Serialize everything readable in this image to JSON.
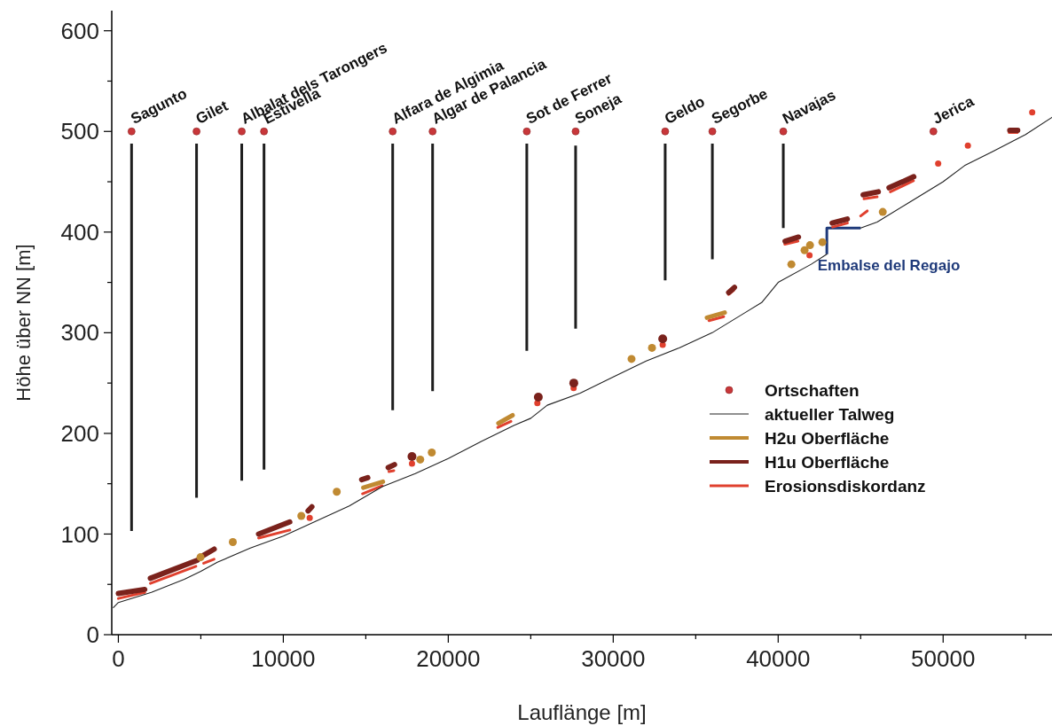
{
  "chart_data": {
    "type": "line",
    "xlabel": "Lauflänge [m]",
    "ylabel": "Höhe über NN [m]",
    "xlim": [
      -400,
      56600
    ],
    "ylim": [
      0,
      620
    ],
    "xticks": [
      0,
      {
        "value": 5000,
        "label": null
      },
      10000,
      {
        "value": 15000,
        "label": null
      },
      20000,
      {
        "value": 25000,
        "label": null
      },
      30000,
      {
        "value": 35000,
        "label": null
      },
      40000,
      {
        "value": 45000,
        "label": null
      },
      50000,
      {
        "value": 55000,
        "label": null
      }
    ],
    "yticks": [
      0,
      {
        "value": 50,
        "label": null
      },
      100,
      {
        "value": 150,
        "label": null
      },
      200,
      {
        "value": 250,
        "label": null
      },
      300,
      {
        "value": 350,
        "label": null
      },
      400,
      {
        "value": 450,
        "label": null
      },
      500,
      {
        "value": 550,
        "label": null
      },
      600
    ],
    "legend": "bottom right",
    "grid": false,
    "series": [
      {
        "name": "Ortschaften",
        "type": "scatter",
        "marker": "circle",
        "color": "#c8373a",
        "x": [
          800,
          4740,
          7480,
          8830,
          16630,
          19050,
          24760,
          27720,
          33150,
          36010,
          40310,
          49410
        ],
        "values": [
          500,
          500,
          500,
          500,
          500,
          500,
          500,
          500,
          500,
          500,
          500,
          500
        ]
      },
      {
        "name": "aktueller Talweg",
        "color": "#222222",
        "x": [
          -300,
          0,
          2000,
          4000,
          5000,
          6000,
          8000,
          10000,
          12000,
          14000,
          16000,
          18000,
          20000,
          22000,
          24000,
          25000,
          26000,
          28000,
          30000,
          32000,
          34000,
          36000,
          38000,
          39000,
          40000,
          42000,
          42950,
          null,
          45000,
          46000,
          48000,
          50000,
          51300,
          53000,
          55000,
          56600
        ],
        "values": [
          27,
          32,
          42,
          55,
          63,
          72,
          86,
          98,
          113,
          128,
          147,
          160,
          175,
          192,
          208,
          215,
          228,
          240,
          256,
          272,
          285,
          300,
          320,
          330,
          350,
          368,
          378,
          null,
          404,
          410,
          430,
          450,
          466,
          480,
          497,
          514
        ]
      },
      {
        "name": "H2u Oberfläche",
        "color": "#c08a32",
        "x": [
          4980,
          null,
          6940,
          null,
          11090,
          null,
          13240,
          null,
          14850,
          16040,
          null,
          18300,
          null,
          19000,
          null,
          23040,
          23900,
          null,
          31110,
          null,
          32350,
          null,
          35680,
          36760,
          null,
          40800,
          null,
          41600,
          null,
          41930,
          null,
          42680,
          null,
          46340
        ],
        "values": [
          77,
          null,
          92,
          null,
          118,
          null,
          142,
          null,
          146,
          152,
          null,
          174,
          null,
          181,
          null,
          210,
          218,
          null,
          274,
          null,
          285,
          null,
          315,
          320,
          null,
          368,
          null,
          382,
          null,
          387,
          null,
          390,
          null,
          420
        ]
      },
      {
        "name": "H1u Oberfläche",
        "color": "#7a221c",
        "x": [
          0,
          1600,
          null,
          1940,
          4790,
          null,
          5170,
          5810,
          null,
          8500,
          10390,
          null,
          11500,
          11730,
          null,
          14750,
          15120,
          null,
          16360,
          16740,
          null,
          17800,
          null,
          25460,
          null,
          27610,
          null,
          33000,
          null,
          37000,
          37350,
          null,
          40420,
          41230,
          null,
          43270,
          44190,
          null,
          45150,
          46070,
          null,
          46720,
          48220,
          null,
          54040,
          54520
        ],
        "values": [
          41,
          45,
          null,
          56,
          74,
          null,
          79,
          85,
          null,
          100,
          112,
          null,
          123,
          127,
          null,
          154,
          156,
          null,
          166,
          169,
          null,
          177,
          null,
          236,
          null,
          250,
          null,
          294,
          null,
          340,
          345,
          null,
          391,
          395,
          null,
          409,
          413,
          null,
          437,
          440,
          null,
          444,
          455,
          null,
          501,
          501
        ]
      },
      {
        "name": "Erosionsdiskordanz",
        "color": "#e0402e",
        "x": [
          0,
          1600,
          null,
          1940,
          4700,
          null,
          5170,
          5800,
          null,
          8500,
          10400,
          null,
          11600,
          null,
          14800,
          16000,
          null,
          16400,
          16700,
          null,
          17800,
          null,
          23000,
          23800,
          null,
          25400,
          null,
          27600,
          null,
          33000,
          null,
          35800,
          36700,
          null,
          37000,
          37300,
          null,
          40400,
          41200,
          null,
          41900,
          null,
          43300,
          44200,
          null,
          45000,
          45400,
          null,
          45200,
          46000,
          null,
          46800,
          48200,
          null,
          49700,
          null,
          51500,
          null,
          54000,
          54500,
          null,
          55400
        ],
        "values": [
          36,
          42,
          null,
          51,
          68,
          null,
          71,
          75,
          null,
          96,
          104,
          null,
          116,
          null,
          140,
          148,
          null,
          162,
          163,
          null,
          170,
          null,
          206,
          212,
          null,
          230,
          null,
          245,
          null,
          288,
          null,
          312,
          316,
          null,
          338,
          342,
          null,
          388,
          391,
          null,
          377,
          null,
          405,
          409,
          null,
          416,
          421,
          null,
          433,
          435,
          null,
          440,
          451,
          null,
          468,
          null,
          486,
          null,
          499,
          499,
          null,
          519
        ]
      },
      {
        "color": "#1e1e1e",
        "x": [
          800,
          800,
          null,
          4740,
          4740,
          null,
          7480,
          7480,
          null,
          8830,
          8830,
          null,
          16630,
          16630,
          null,
          19050,
          19050,
          null,
          24760,
          24760,
          null,
          27720,
          27720,
          null,
          33150,
          33150,
          null,
          36010,
          36010,
          null,
          40310,
          40310
        ],
        "values": [
          488,
          103,
          null,
          488,
          136,
          null,
          488,
          153,
          null,
          488,
          164,
          null,
          488,
          223,
          null,
          488,
          242,
          null,
          488,
          282,
          null,
          486,
          304,
          null,
          488,
          352,
          null,
          488,
          373,
          null,
          488,
          404
        ]
      },
      {
        "color": "#1f3a7a",
        "x": [
          42950,
          42950,
          45000
        ],
        "values": [
          378,
          404,
          404
        ]
      }
    ],
    "annotations": [
      {
        "text": "Sagunto",
        "x": 800,
        "y": 500
      },
      {
        "text": "Gilet",
        "x": 4740,
        "y": 500
      },
      {
        "text": "Albalat dels Tarongers",
        "x": 7480,
        "y": 500
      },
      {
        "text": "Estivella",
        "x": 8830,
        "y": 500
      },
      {
        "text": "Alfara de Algimia",
        "x": 16630,
        "y": 500
      },
      {
        "text": "Algar de Palancia",
        "x": 19050,
        "y": 500
      },
      {
        "text": "Sot de Ferrer",
        "x": 24760,
        "y": 500
      },
      {
        "text": "Soneja",
        "x": 27720,
        "y": 500
      },
      {
        "text": "Geldo",
        "x": 33150,
        "y": 500
      },
      {
        "text": "Segorbe",
        "x": 36010,
        "y": 500
      },
      {
        "text": "Navajas",
        "x": 40310,
        "y": 500
      },
      {
        "text": "Jerica",
        "x": 49410,
        "y": 500
      },
      {
        "text": "Embalse del Regajo",
        "x": 44000,
        "y": 404
      }
    ]
  }
}
